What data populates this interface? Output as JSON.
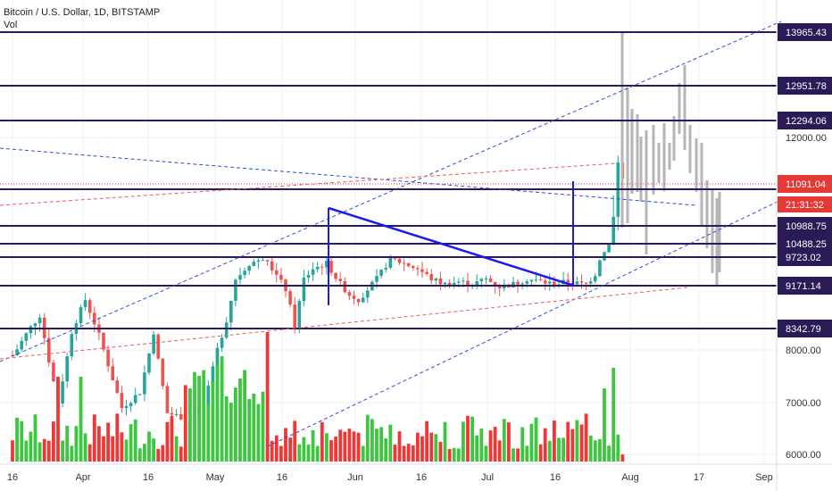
{
  "header": {
    "title": "Bitcoin / U.S. Dollar, 1D, BITSTAMP",
    "volume_label": "Vol"
  },
  "colors": {
    "up": "#26a69a",
    "down": "#ef5350",
    "volume_up": "#3ec640",
    "volume_down": "#f23535",
    "level_line": "#2a1a66",
    "triangle": "#1b1bf0",
    "channel": "#2a4fd6",
    "trend_red": "#f05a5a",
    "projection": "#b5b5b5"
  },
  "chart_data": {
    "type": "candlestick",
    "x_ticks": [
      "16",
      "Apr",
      "16",
      "May",
      "16",
      "Jun",
      "16",
      "Jul",
      "16",
      "Aug",
      "17",
      "Sep"
    ],
    "y_ticks": [
      6000,
      7000,
      8000,
      12000
    ],
    "y_tick_labels": [
      "6000.00",
      "7000.00",
      "8000.00",
      "12000.00"
    ],
    "key_levels": [
      {
        "value": 13965.43,
        "label": "13965.43"
      },
      {
        "value": 12951.78,
        "label": "12951.78"
      },
      {
        "value": 12294.06,
        "label": "12294.06"
      },
      {
        "value": 11091.04,
        "label": "11091.04",
        "current": true
      },
      {
        "value": 10988.75,
        "label": "10988.75"
      },
      {
        "value": 10488.25,
        "label": "10488.25"
      },
      {
        "value": 9723.02,
        "label": "9723.02"
      },
      {
        "value": 9171.14,
        "label": "9171.14"
      },
      {
        "value": 8342.79,
        "label": "8342.79"
      }
    ],
    "countdown": "21:31:32",
    "price_scale": "nonlinear",
    "volume_pane": true,
    "candles_note": "daily OHLC, mid-March to late July; grey candles are a projected path into late August"
  }
}
